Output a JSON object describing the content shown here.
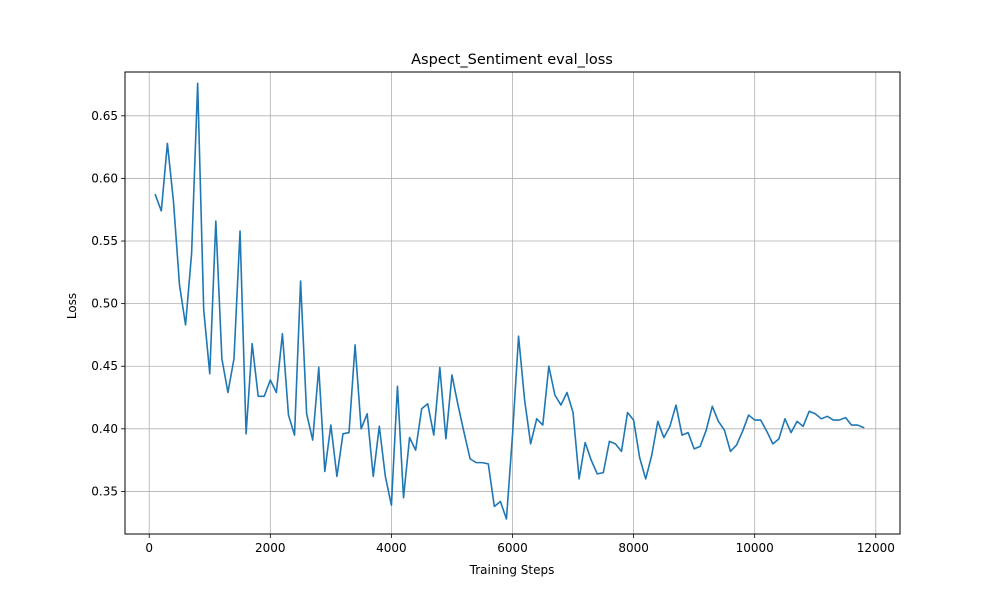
{
  "chart_data": {
    "type": "line",
    "title": "Aspect_Sentiment eval_loss",
    "xlabel": "Training Steps",
    "ylabel": "Loss",
    "xlim": [
      -400,
      12400
    ],
    "ylim": [
      0.316,
      0.685
    ],
    "xticks": [
      0,
      2000,
      4000,
      6000,
      8000,
      10000,
      12000
    ],
    "yticks": [
      0.35,
      0.4,
      0.45,
      0.5,
      0.55,
      0.6,
      0.65
    ],
    "ytick_labels": [
      "0.35",
      "0.40",
      "0.45",
      "0.50",
      "0.55",
      "0.60",
      "0.65"
    ],
    "grid": true,
    "line_color": "#1f77b4",
    "series": [
      {
        "x": [
          100,
          200,
          300,
          400,
          500,
          600,
          700,
          800,
          900,
          1000,
          1100,
          1200,
          1300,
          1400,
          1500,
          1600,
          1700,
          1800,
          1900,
          2000,
          2100,
          2200,
          2300,
          2400,
          2500,
          2600,
          2700,
          2800,
          2900,
          3000,
          3100,
          3200,
          3300,
          3400,
          3500,
          3600,
          3700,
          3800,
          3900,
          4000,
          4100,
          4200,
          4300,
          4400,
          4500,
          4600,
          4700,
          4800,
          4900,
          5000,
          5100,
          5200,
          5300,
          5400,
          5500,
          5600,
          5700,
          5800,
          5900,
          6000,
          6100,
          6200,
          6300,
          6400,
          6500,
          6600,
          6700,
          6800,
          6900,
          7000,
          7100,
          7200,
          7300,
          7400,
          7500,
          7600,
          7700,
          7800,
          7900,
          8000,
          8100,
          8200,
          8300,
          8400,
          8500,
          8600,
          8700,
          8800,
          8900,
          9000,
          9100,
          9200,
          9300,
          9400,
          9500,
          9600,
          9700,
          9800,
          9900,
          10000,
          10100,
          10200,
          10300,
          10400,
          10500,
          10600,
          10700,
          10800,
          10900,
          11000,
          11100,
          11200,
          11300,
          11400,
          11500,
          11600,
          11700,
          11800
        ],
        "values": [
          0.587,
          0.574,
          0.628,
          0.582,
          0.515,
          0.483,
          0.54,
          0.676,
          0.495,
          0.444,
          0.566,
          0.456,
          0.429,
          0.456,
          0.558,
          0.396,
          0.468,
          0.426,
          0.426,
          0.439,
          0.429,
          0.476,
          0.411,
          0.395,
          0.518,
          0.412,
          0.391,
          0.449,
          0.366,
          0.403,
          0.362,
          0.396,
          0.397,
          0.467,
          0.4,
          0.412,
          0.362,
          0.402,
          0.362,
          0.339,
          0.434,
          0.345,
          0.393,
          0.383,
          0.416,
          0.42,
          0.395,
          0.449,
          0.392,
          0.443,
          0.419,
          0.397,
          0.376,
          0.373,
          0.373,
          0.372,
          0.338,
          0.342,
          0.328,
          0.395,
          0.474,
          0.423,
          0.388,
          0.408,
          0.403,
          0.45,
          0.427,
          0.419,
          0.429,
          0.413,
          0.36,
          0.389,
          0.375,
          0.364,
          0.365,
          0.39,
          0.388,
          0.382,
          0.413,
          0.407,
          0.377,
          0.36,
          0.379,
          0.406,
          0.393,
          0.402,
          0.419,
          0.395,
          0.397,
          0.384,
          0.386,
          0.399,
          0.418,
          0.406,
          0.399,
          0.382,
          0.387,
          0.398,
          0.411,
          0.407,
          0.407,
          0.398,
          0.388,
          0.392,
          0.408,
          0.397,
          0.406,
          0.402,
          0.414,
          0.412,
          0.408,
          0.41,
          0.407,
          0.407,
          0.409,
          0.403,
          0.403,
          0.401
        ]
      }
    ]
  }
}
